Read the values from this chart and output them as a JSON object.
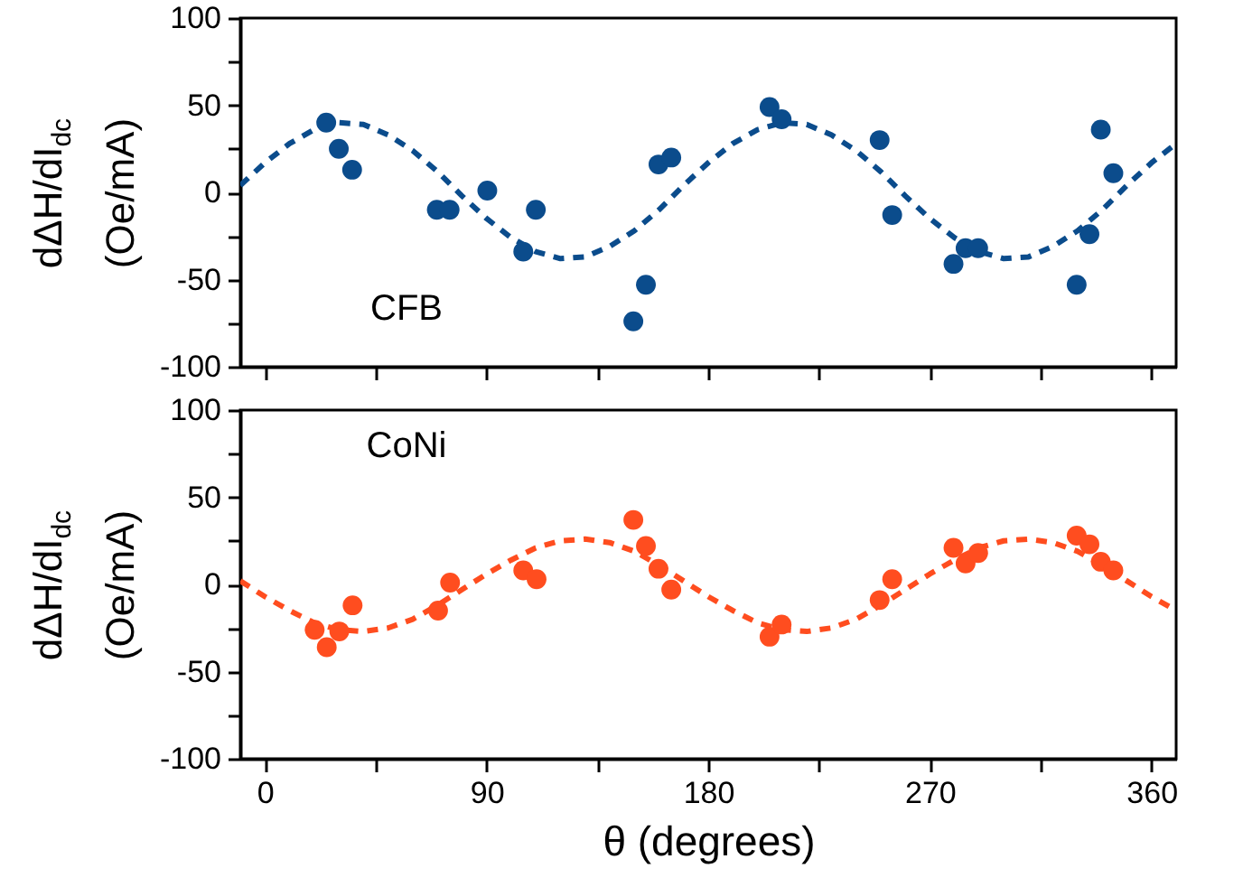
{
  "chart_data": [
    {
      "type": "scatter",
      "ylabel": "dΔH/dI$_{dc}$\n(Oe/mA)",
      "annotations": [
        "CFB"
      ],
      "marker": "circle",
      "tick_labels": "y",
      "xlim": [
        -10,
        370
      ],
      "xticks": [
        0,
        {
          "value": 45,
          "label": null
        },
        {
          "value": 90,
          "label": null
        },
        {
          "value": 135,
          "label": null
        },
        {
          "value": 180,
          "label": null
        },
        {
          "value": 225,
          "label": null
        },
        {
          "value": 270,
          "label": null
        },
        {
          "value": 315,
          "label": null
        },
        {
          "value": 360,
          "label": null
        }
      ],
      "ylim": [
        -100,
        100
      ],
      "yticks": [
        -100,
        {
          "value": -75,
          "label": null
        },
        -50,
        {
          "value": -25,
          "label": null
        },
        0,
        {
          "value": 25,
          "label": null
        },
        50,
        {
          "value": 75,
          "label": null
        },
        100
      ],
      "series": [
        {
          "type": "scatter",
          "color": "#0b4c8c",
          "x": [
            24.9,
            30,
            35.4,
            69.8,
            75,
            90.3,
            104.9,
            110,
            149.6,
            154.7,
            159.8,
            165,
            204.9,
            209.8,
            249.6,
            254.7,
            279.6,
            284.5,
            289.6,
            329.6,
            334.8,
            339.4,
            344.5
          ],
          "values": [
            40,
            25,
            13,
            -10,
            -10,
            1,
            -34,
            -10,
            -74,
            -53,
            16,
            20,
            49,
            42,
            30,
            -13,
            -41,
            -32,
            -32,
            -53,
            -24,
            36,
            11
          ]
        },
        {
          "type": "line",
          "color": "#0b4c8c",
          "line_style": "dashed",
          "marker": "none",
          "x": [
            -10,
            0,
            10,
            20,
            30,
            40,
            50,
            60,
            70,
            80,
            90,
            100,
            110,
            120,
            130,
            140,
            150,
            160,
            170,
            180,
            190,
            200,
            210,
            220,
            230,
            240,
            250,
            260,
            270,
            280,
            290,
            300,
            310,
            320,
            330,
            340,
            350,
            360,
            370
          ],
          "values": [
            4,
            17,
            28,
            36,
            40,
            39,
            33,
            24,
            12,
            -2,
            -15,
            -26,
            -34,
            -38,
            -37,
            -31,
            -22,
            -10,
            4,
            17,
            28,
            36,
            40,
            39,
            33,
            24,
            12,
            -2,
            -15,
            -26,
            -34,
            -38,
            -37,
            -31,
            -22,
            -10,
            4,
            17,
            28
          ]
        }
      ]
    },
    {
      "type": "scatter",
      "ylabel": "dΔH/dI$_{dc}$\n(Oe/mA)",
      "xlabel": "θ (degrees)",
      "annotations": [
        "CoNi"
      ],
      "marker": "circle",
      "xlim": [
        -10,
        370
      ],
      "xticks": [
        0,
        {
          "value": 45,
          "label": null
        },
        90,
        {
          "value": 135,
          "label": null
        },
        180,
        {
          "value": 225,
          "label": null
        },
        270,
        {
          "value": 315,
          "label": null
        },
        360
      ],
      "ylim": [
        -100,
        100
      ],
      "yticks": [
        -100,
        {
          "value": -75,
          "label": null
        },
        -50,
        {
          "value": -25,
          "label": null
        },
        0,
        {
          "value": 25,
          "label": null
        },
        50,
        {
          "value": 75,
          "label": null
        },
        100
      ],
      "series": [
        {
          "type": "scatter",
          "color": "#ff4d1f",
          "x": [
            20.2,
            25.1,
            30.2,
            35.6,
            70.3,
            75.2,
            104.9,
            110.3,
            149.6,
            154.7,
            159.8,
            165,
            204.9,
            209.8,
            249.6,
            254.7,
            279.6,
            284.5,
            289.6,
            329.6,
            334.8,
            339.4,
            344.5
          ],
          "values": [
            -26,
            -36,
            -27,
            -12,
            -15,
            1,
            8,
            3,
            37,
            22,
            9,
            -3,
            -30,
            -23,
            -9,
            3,
            21,
            12,
            18,
            28,
            23,
            13,
            8
          ]
        },
        {
          "type": "line",
          "color": "#ff4d1f",
          "line_style": "dashed",
          "marker": "none",
          "x": [
            -10,
            0,
            10,
            20,
            30,
            40,
            50,
            60,
            70,
            80,
            90,
            100,
            110,
            120,
            130,
            140,
            150,
            160,
            170,
            180,
            190,
            200,
            210,
            220,
            230,
            240,
            250,
            260,
            270,
            280,
            290,
            300,
            310,
            320,
            330,
            340,
            350,
            360,
            370
          ],
          "values": [
            2,
            -7,
            -15,
            -22,
            -26,
            -27,
            -25,
            -20,
            -12,
            -3,
            6,
            14,
            21,
            25,
            26,
            24,
            19,
            11,
            2,
            -7,
            -15,
            -22,
            -26,
            -27,
            -25,
            -20,
            -12,
            -3,
            6,
            14,
            21,
            25,
            26,
            24,
            19,
            11,
            2,
            -7,
            -15
          ]
        }
      ]
    }
  ]
}
